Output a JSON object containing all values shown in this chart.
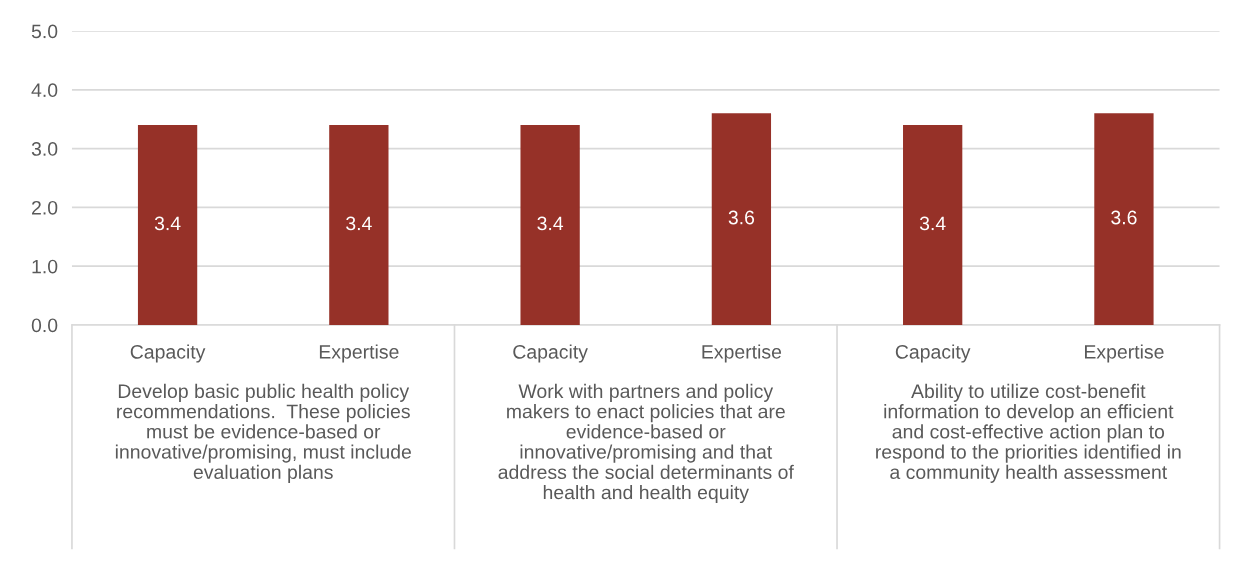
{
  "chart_data": {
    "type": "bar",
    "categories": [
      "Capacity",
      "Expertise",
      "Capacity",
      "Expertise",
      "Capacity",
      "Expertise"
    ],
    "values": [
      3.4,
      3.4,
      3.4,
      3.6,
      3.4,
      3.6
    ],
    "color": "#963128",
    "data_labels": true,
    "ylim": [
      0,
      5
    ],
    "yticks": [
      {
        "value": 0,
        "label": "0.0"
      },
      {
        "value": 1,
        "label": "1.0"
      },
      {
        "value": 2,
        "label": "2.0"
      },
      {
        "value": 3,
        "label": "3.0"
      },
      {
        "value": 4,
        "label": "4.0"
      },
      {
        "value": 5,
        "label": "5.0"
      }
    ],
    "grid": "y",
    "annotations": [
      "Develop basic public health policy\nrecommendations.  These policies\nmust be evidence-based or\ninnovative/promising, must include\nevaluation plans",
      "Work with partners and policy\nmakers to enact policies that are\nevidence-based or\ninnovative/promising and that\naddress the social determinants of\nhealth and health equity",
      "Ability to utilize cost-benefit\ninformation to develop an efficient\nand cost-effective action plan to\nrespond to the priorities identified in\na community health assessment"
    ]
  }
}
